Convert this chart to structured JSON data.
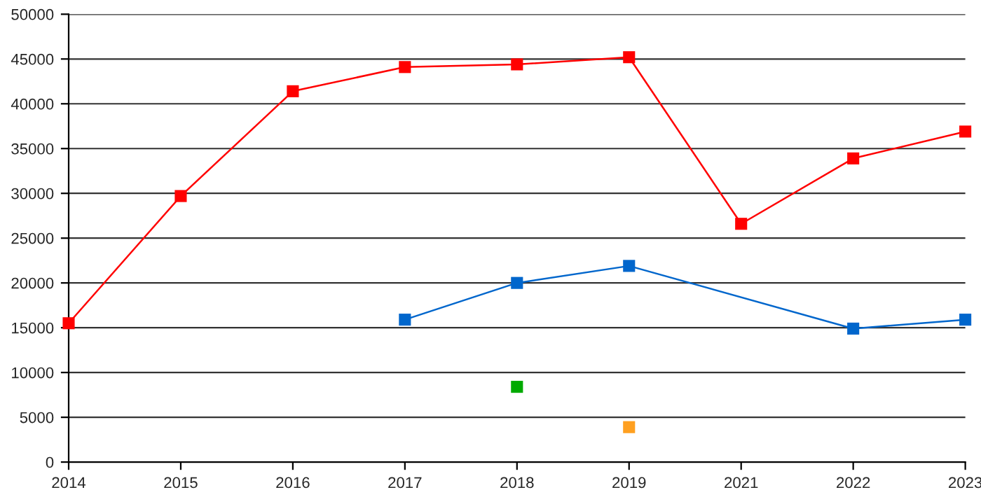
{
  "chart_data": {
    "type": "line",
    "categories": [
      "2014",
      "2015",
      "2016",
      "2017",
      "2018",
      "2019",
      "2021",
      "2022",
      "2023"
    ],
    "series": [
      {
        "color": "#ff0000",
        "values": [
          15500,
          29700,
          41400,
          44100,
          44400,
          45200,
          26600,
          33900,
          36900
        ]
      },
      {
        "color": "#0066cc",
        "values": [
          null,
          null,
          null,
          15900,
          20000,
          21900,
          null,
          14900,
          15900
        ]
      },
      {
        "color": "#00aa00",
        "values": [
          null,
          null,
          null,
          null,
          8400,
          null,
          null,
          null,
          null
        ]
      },
      {
        "color": "#ffa020",
        "values": [
          null,
          null,
          null,
          null,
          null,
          3900,
          null,
          null,
          null
        ]
      }
    ],
    "ylim": [
      0,
      50000
    ],
    "yticks": [
      0,
      5000,
      10000,
      15000,
      20000,
      25000,
      30000,
      35000,
      40000,
      45000,
      50000
    ],
    "grid": "y",
    "marker": "square",
    "line_style": "solid",
    "legend": false
  }
}
